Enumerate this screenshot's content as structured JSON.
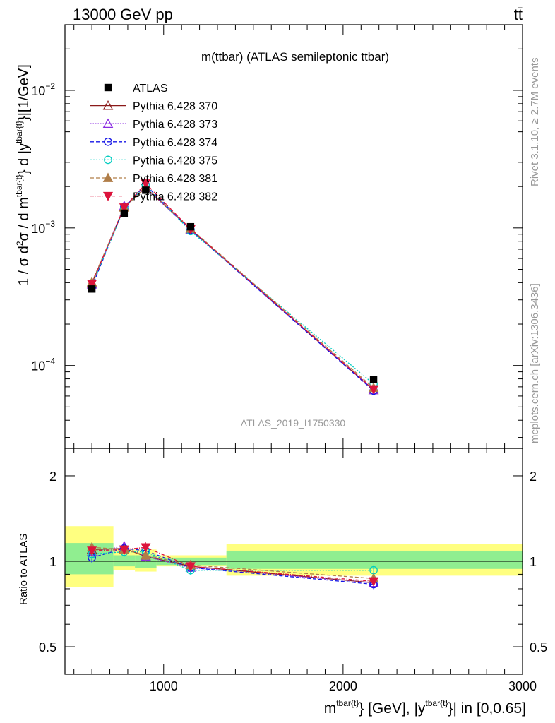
{
  "header": {
    "left": "13000 GeV pp",
    "right": "tt̄"
  },
  "side_labels": {
    "rivet": "Rivet 3.1.10, ≥ 2.7M events",
    "mcplots": "mcplots.cern.ch [arXiv:1306.3436]"
  },
  "main_plot": {
    "title": "m(ttbar) (ATLAS semileptonic ttbar)",
    "analysis_id": "ATLAS_2019_I1750330",
    "ylabel_parts": {
      "a": "1 / σ d",
      "b": "2",
      "c": "σ / d m",
      "d": "tbar{t}",
      "e": "} d |y",
      "f": "tbar{t}",
      "g": "}|[1/GeV]"
    },
    "y_ticks": [
      {
        "base": "10",
        "exp": "−2",
        "value": 0.01
      },
      {
        "base": "10",
        "exp": "−3",
        "value": 0.001
      },
      {
        "base": "10",
        "exp": "−4",
        "value": 0.0001
      }
    ]
  },
  "ratio_plot": {
    "ylabel": "Ratio to ATLAS",
    "y_ticks": [
      "2",
      "1",
      "0.5"
    ],
    "x_ticks": [
      "1000",
      "2000",
      "3000"
    ]
  },
  "xlabel_parts": {
    "a": "m",
    "b": "tbar{t}",
    "c": "} [GeV], |y",
    "d": "tbar{t}",
    "e": "}| in [0,0.65]"
  },
  "chart_data": {
    "type": "line",
    "x_scale": "linear",
    "y_scale": "log",
    "xlim": [
      450,
      3000
    ],
    "ylim": [
      2.5e-05,
      0.03
    ],
    "ratio_ylim_log": [
      0.4,
      2.5
    ],
    "x": [
      600,
      780,
      900,
      1150,
      2170
    ],
    "bin_edges": [
      450,
      720,
      840,
      960,
      1350,
      3000
    ],
    "data": {
      "name": "ATLAS",
      "values": [
        0.00036,
        0.00128,
        0.00188,
        0.00102,
        7.9e-05
      ],
      "ratio_band_inner": [
        [
          0.9,
          1.16
        ],
        [
          0.96,
          1.05
        ],
        [
          0.95,
          1.05
        ],
        [
          0.97,
          1.03
        ],
        [
          0.94,
          1.09
        ]
      ],
      "ratio_band_outer": [
        [
          0.81,
          1.33
        ],
        [
          0.93,
          1.1
        ],
        [
          0.92,
          1.1
        ],
        [
          0.96,
          1.05
        ],
        [
          0.89,
          1.15
        ]
      ]
    },
    "series": [
      {
        "name": "Pythia 6.428 370",
        "color": "#8b1a1a",
        "dash": "",
        "marker": "triangle-open",
        "ratio": [
          1.1,
          1.11,
          1.04,
          0.96,
          0.84
        ]
      },
      {
        "name": "Pythia 6.428 373",
        "color": "#8a2be2",
        "dash": "1.5,2",
        "marker": "triangle-open",
        "ratio": [
          1.08,
          1.13,
          1.04,
          0.95,
          0.84
        ]
      },
      {
        "name": "Pythia 6.428 374",
        "color": "#1515e6",
        "dash": "5,3",
        "marker": "circle-open",
        "ratio": [
          1.03,
          1.11,
          1.09,
          0.95,
          0.83
        ]
      },
      {
        "name": "Pythia 6.428 375",
        "color": "#00ccc0",
        "dash": "2,2",
        "marker": "circle-open",
        "ratio": [
          1.06,
          1.08,
          1.08,
          0.93,
          0.93
        ]
      },
      {
        "name": "Pythia 6.428 381",
        "color": "#b07d48",
        "dash": "5,3",
        "marker": "triangle-filled",
        "ratio": [
          1.12,
          1.1,
          1.05,
          0.97,
          0.87
        ]
      },
      {
        "name": "Pythia 6.428 382",
        "color": "#dc143c",
        "dash": "5,2,1,2",
        "marker": "triangle-down-filled",
        "ratio": [
          1.09,
          1.1,
          1.12,
          0.96,
          0.85
        ]
      }
    ]
  },
  "colors": {
    "band_outer": "#ffff80",
    "band_inner": "#90ee90",
    "watermark": "#999999"
  }
}
